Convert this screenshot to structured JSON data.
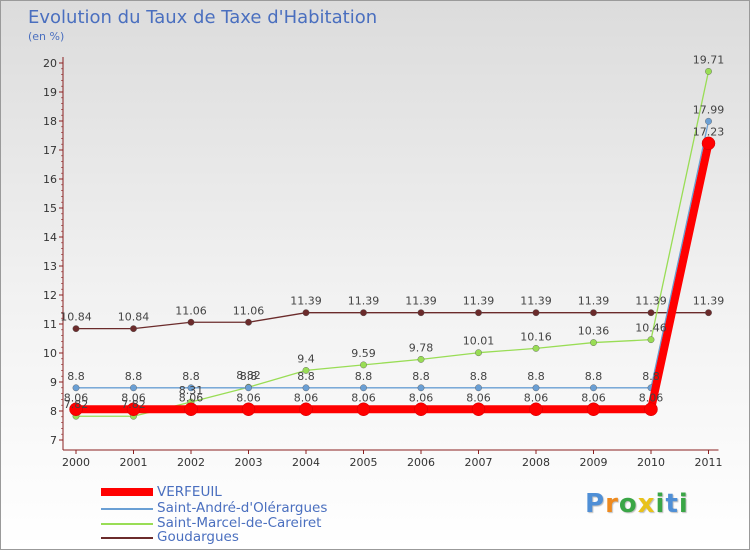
{
  "chart_data": {
    "type": "line",
    "title": "Evolution du Taux de Taxe d'Habitation",
    "subtitle": "(en %)",
    "xlabel": "",
    "ylabel": "(en %)",
    "categories": [
      "2000",
      "2001",
      "2002",
      "2003",
      "2004",
      "2005",
      "2006",
      "2007",
      "2008",
      "2009",
      "2010",
      "2011"
    ],
    "ylim": [
      7,
      20
    ],
    "yticks": [
      "7",
      "8",
      "9",
      "10",
      "11",
      "12",
      "13",
      "14",
      "15",
      "16",
      "17",
      "18",
      "19",
      "20"
    ],
    "grid": false,
    "legend_position": "bottom-left",
    "series": [
      {
        "name": "VERFEUIL",
        "color": "#ff0000",
        "values": [
          8.06,
          8.06,
          8.06,
          8.06,
          8.06,
          8.06,
          8.06,
          8.06,
          8.06,
          8.06,
          8.06,
          17.23
        ],
        "labels": [
          "8.06",
          "8.06",
          "8.06",
          "8.06",
          "8.06",
          "8.06",
          "8.06",
          "8.06",
          "8.06",
          "8.06",
          "8.06",
          "17.23"
        ]
      },
      {
        "name": "Saint-André-d'Olérargues",
        "color": "#6a9fd4",
        "values": [
          8.8,
          8.8,
          8.8,
          8.8,
          8.8,
          8.8,
          8.8,
          8.8,
          8.8,
          8.8,
          8.8,
          17.99
        ],
        "labels": [
          "8.8",
          "8.8",
          "8.8",
          "8.8",
          "8.8",
          "8.8",
          "8.8",
          "8.8",
          "8.8",
          "8.8",
          "8.8",
          "17.99"
        ]
      },
      {
        "name": "Saint-Marcel-de-Careiret",
        "color": "#99dd55",
        "values": [
          7.82,
          7.82,
          8.31,
          8.82,
          9.4,
          9.59,
          9.78,
          10.01,
          10.16,
          10.36,
          10.46,
          19.71
        ],
        "labels": [
          "7.82",
          "7.82",
          "8.31",
          "8.82",
          "9.4",
          "9.59",
          "9.78",
          "10.01",
          "10.16",
          "10.36",
          "10.46",
          "19.71"
        ]
      },
      {
        "name": "Goudargues",
        "color": "#6b2b2b",
        "values": [
          10.84,
          10.84,
          11.06,
          11.06,
          11.39,
          11.39,
          11.39,
          11.39,
          11.39,
          11.39,
          11.39,
          11.39
        ],
        "labels": [
          "10.84",
          "10.84",
          "11.06",
          "11.06",
          "11.39",
          "11.39",
          "11.39",
          "11.39",
          "11.39",
          "11.39",
          "11.39",
          "11.39"
        ]
      }
    ]
  },
  "legend": {
    "items": [
      {
        "label": "VERFEUIL",
        "color": "#ff0000"
      },
      {
        "label": "Saint-André-d'Olérargues",
        "color": "#6a9fd4"
      },
      {
        "label": "Saint-Marcel-de-Careiret",
        "color": "#99dd55"
      },
      {
        "label": "Goudargues",
        "color": "#6b2b2b"
      }
    ]
  },
  "logo": {
    "letters": [
      "P",
      "r",
      "o",
      "x",
      "i",
      "t",
      "i"
    ],
    "colors": [
      "#4f8fd6",
      "#ee8a1e",
      "#3aa646",
      "#e8c21a",
      "#3aa646",
      "#4f8fd6",
      "#3aa646"
    ]
  }
}
